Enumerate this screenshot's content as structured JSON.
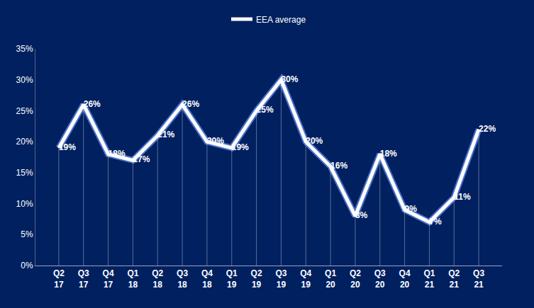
{
  "chart_data": {
    "type": "line",
    "categories": [
      "Q2 17",
      "Q3 17",
      "Q4 17",
      "Q1 18",
      "Q2 18",
      "Q3 18",
      "Q4 18",
      "Q1 19",
      "Q2 19",
      "Q3 19",
      "Q4 19",
      "Q1 20",
      "Q2 20",
      "Q3 20",
      "Q4 20",
      "Q1 21",
      "Q2 21",
      "Q3 21"
    ],
    "series": [
      {
        "name": "EEA average",
        "color": "#ffffff",
        "values": [
          19,
          26,
          18,
          17,
          21,
          26,
          20,
          19,
          25,
          30,
          20,
          16,
          8,
          18,
          9,
          7,
          11,
          22
        ],
        "value_labels": [
          "19%",
          "26%",
          "18%",
          "17%",
          "21%",
          "26%",
          "20%",
          "19%",
          "25%",
          "30%",
          "20%",
          "16%",
          "8%",
          "18%",
          "9%",
          "7%",
          "11%",
          "22%"
        ]
      }
    ],
    "ylim": [
      0,
      35
    ],
    "yticks": [
      {
        "value": 0,
        "label": "0%"
      },
      {
        "value": 5,
        "label": "5%"
      },
      {
        "value": 10,
        "label": "10%"
      },
      {
        "value": 15,
        "label": "15%"
      },
      {
        "value": 20,
        "label": "20%"
      },
      {
        "value": 25,
        "label": "25%"
      },
      {
        "value": 30,
        "label": "30%"
      },
      {
        "value": 35,
        "label": "35%"
      }
    ],
    "grid": false,
    "legend": "top",
    "data_labels": true
  }
}
